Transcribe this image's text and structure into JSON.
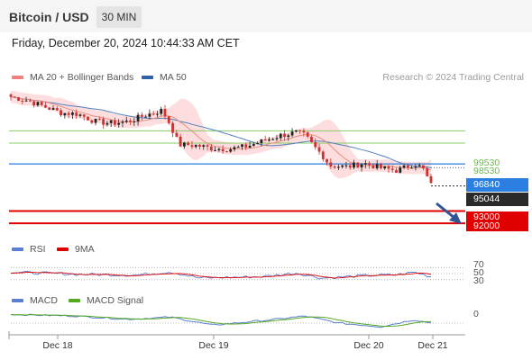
{
  "header": {
    "pair": "Bitcoin / USD",
    "timeframe": "30 MIN"
  },
  "datetime": "Friday, December 20, 2024 10:44:33 AM CET",
  "legend": {
    "items": [
      {
        "label": "MA 20 + Bollinger Bands",
        "color": "#f08080"
      },
      {
        "label": "MA 50",
        "color": "#3060a8"
      }
    ],
    "credit": "Research © 2024 Trading Central"
  },
  "levels": {
    "r2": "99530",
    "r1": "98530",
    "pivot": "96840",
    "last": "95044",
    "s1": "93000",
    "s2": "92000"
  },
  "rsi": {
    "label": "RSI",
    "ma_label": "9MA",
    "levels": [
      "70",
      "50",
      "30"
    ]
  },
  "macd": {
    "label": "MACD",
    "signal_label": "MACD Signal",
    "zero": "0"
  },
  "x_axis": {
    "ticks": [
      "Dec 18",
      "Dec 19",
      "Dec 20",
      "Dec 21"
    ]
  },
  "colors": {
    "green": "#88cc66",
    "blue": "#2b7fe0",
    "red": "#e00000",
    "up": "#222222",
    "down": "#d03030",
    "band": "#fdd7d7",
    "ma50": "#5080c0",
    "ma20": "#e89080"
  },
  "chart_data": {
    "type": "candlestick",
    "y_range": [
      91500,
      103000
    ],
    "price_anchors": [
      [
        0,
        102300
      ],
      [
        4,
        102000
      ],
      [
        8,
        101500
      ],
      [
        12,
        101000
      ],
      [
        16,
        100900
      ],
      [
        20,
        100300
      ],
      [
        24,
        100150
      ],
      [
        28,
        100300
      ],
      [
        32,
        100800
      ],
      [
        36,
        101200
      ],
      [
        38,
        100000
      ],
      [
        40,
        98400
      ],
      [
        44,
        98350
      ],
      [
        48,
        98100
      ],
      [
        52,
        98050
      ],
      [
        56,
        98250
      ],
      [
        60,
        98700
      ],
      [
        64,
        99150
      ],
      [
        68,
        99400
      ],
      [
        70,
        99150
      ],
      [
        72,
        98300
      ],
      [
        74,
        97600
      ],
      [
        76,
        96700
      ],
      [
        80,
        96600
      ],
      [
        84,
        96900
      ],
      [
        88,
        96500
      ],
      [
        92,
        96300
      ],
      [
        96,
        96850
      ],
      [
        98,
        96500
      ],
      [
        100,
        95100
      ]
    ],
    "rsi_anchors": [
      [
        0,
        55
      ],
      [
        15,
        48
      ],
      [
        30,
        45
      ],
      [
        38,
        56
      ],
      [
        45,
        35
      ],
      [
        60,
        40
      ],
      [
        68,
        52
      ],
      [
        74,
        35
      ],
      [
        84,
        43
      ],
      [
        92,
        46
      ],
      [
        96,
        55
      ],
      [
        100,
        40
      ]
    ],
    "macd_anchors": [
      [
        0,
        0.6
      ],
      [
        15,
        0.45
      ],
      [
        28,
        0.15
      ],
      [
        38,
        0.35
      ],
      [
        48,
        -0.4
      ],
      [
        62,
        0.1
      ],
      [
        70,
        0.45
      ],
      [
        78,
        -0.2
      ],
      [
        88,
        -0.55
      ],
      [
        96,
        0.1
      ],
      [
        100,
        -0.2
      ]
    ]
  }
}
